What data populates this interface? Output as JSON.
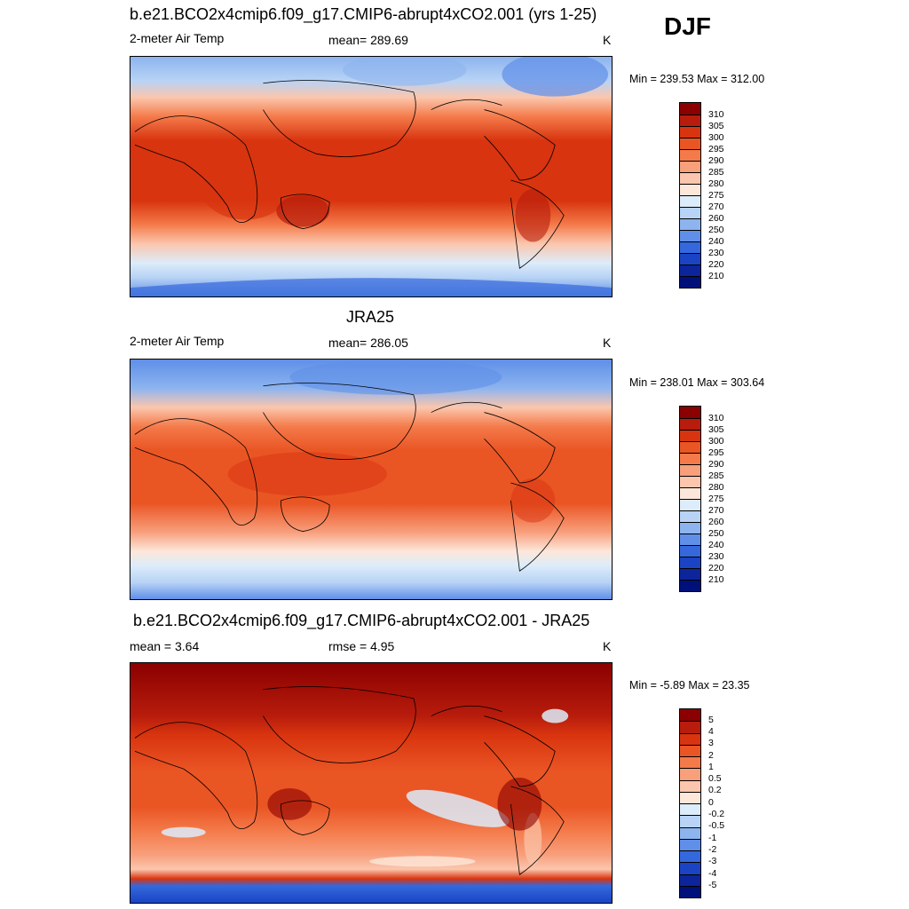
{
  "season": "DJF",
  "panels": [
    {
      "title": "b.e21.BCO2x4cmip6.f09_g17.CMIP6-abrupt4xCO2.001 (yrs 1-25)",
      "left_label": "2-meter Air Temp",
      "center_label": "mean= 289.69",
      "units": "K",
      "minmax": "Min = 239.53 Max = 312.00",
      "map_name": "model-temperature-map"
    },
    {
      "title": "JRA25",
      "left_label": "2-meter Air Temp",
      "center_label": "mean= 286.05",
      "units": "K",
      "minmax": "Min = 238.01 Max = 303.64",
      "map_name": "jra25-temperature-map"
    },
    {
      "title": "b.e21.BCO2x4cmip6.f09_g17.CMIP6-abrupt4xCO2.001 - JRA25",
      "left_label": "mean =   3.64",
      "center_label": "rmse =   4.95",
      "units": "K",
      "minmax": "Min =  -5.89 Max =  23.35",
      "map_name": "difference-map"
    }
  ],
  "colorbars": {
    "temperature": {
      "labels": [
        "310",
        "305",
        "300",
        "295",
        "290",
        "285",
        "280",
        "275",
        "270",
        "260",
        "250",
        "240",
        "230",
        "220",
        "210"
      ],
      "colors": [
        "#8b0000",
        "#b71c0c",
        "#d8340f",
        "#ea5524",
        "#f47a4a",
        "#f89f7c",
        "#fbc6ad",
        "#fde7da",
        "#dcecfa",
        "#b8d3f5",
        "#8db4ef",
        "#5f8fe8",
        "#3468dc",
        "#1a44c4",
        "#0c259a",
        "#00107a"
      ]
    },
    "difference": {
      "labels": [
        "5",
        "4",
        "3",
        "2",
        "1",
        "0.5",
        "0.2",
        "0",
        "-0.2",
        "-0.5",
        "-1",
        "-2",
        "-3",
        "-4",
        "-5"
      ],
      "colors": [
        "#8b0000",
        "#b71c0c",
        "#d8340f",
        "#ea5524",
        "#f47a4a",
        "#f89f7c",
        "#fbc6ad",
        "#fde7da",
        "#dcecfa",
        "#b8d3f5",
        "#8db4ef",
        "#5f8fe8",
        "#3468dc",
        "#1a44c4",
        "#0c259a",
        "#00107a"
      ]
    }
  }
}
